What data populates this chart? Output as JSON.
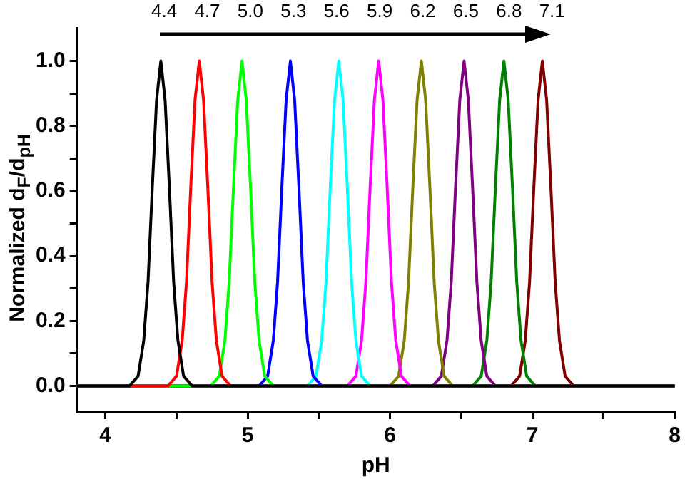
{
  "chart_data": {
    "type": "line",
    "xlabel": "pH",
    "ylabel": "Normalized d$_{F}$/d$_{pH}$",
    "xlim": [
      3.8,
      8.0
    ],
    "xticks": [
      4,
      {
        "value": 4.5,
        "label": null
      },
      5,
      {
        "value": 5.5,
        "label": null
      },
      6,
      {
        "value": 6.5,
        "label": null
      },
      7,
      {
        "value": 7.5,
        "label": null
      },
      8
    ],
    "ylim": [
      -0.08,
      1.1
    ],
    "yticks": [
      {
        "value": 0,
        "label": "0.0"
      },
      {
        "value": 0.1,
        "label": null
      },
      {
        "value": 0.2,
        "label": "0.2"
      },
      {
        "value": 0.3,
        "label": null
      },
      {
        "value": 0.4,
        "label": "0.4"
      },
      {
        "value": 0.5,
        "label": null
      },
      {
        "value": 0.6,
        "label": "0.6"
      },
      {
        "value": 0.7,
        "label": null
      },
      {
        "value": 0.8,
        "label": "0.8"
      },
      {
        "value": 0.9,
        "label": null
      },
      {
        "value": 1.0,
        "label": "1.0"
      }
    ],
    "annotations": [
      "4.4",
      "4.7",
      "5.0",
      "5.3",
      "5.6",
      "5.9",
      "6.2",
      "6.5",
      "6.8",
      "7.1"
    ],
    "legend": false,
    "marker": "none",
    "line_style": "solid",
    "series": [
      {
        "color": "#000000",
        "x": [
          3.8,
          4.17,
          4.23,
          4.27,
          4.3,
          4.33,
          4.36,
          4.39,
          4.42,
          4.45,
          4.48,
          4.51,
          4.55,
          4.61,
          8.0
        ],
        "values": [
          0,
          0,
          0.03,
          0.14,
          0.32,
          0.61,
          0.88,
          1,
          0.88,
          0.61,
          0.32,
          0.14,
          0.03,
          0,
          0
        ]
      },
      {
        "color": "#ff0000",
        "x": [
          3.8,
          4.44,
          4.5,
          4.54,
          4.57,
          4.6,
          4.63,
          4.66,
          4.69,
          4.72,
          4.75,
          4.78,
          4.82,
          4.88,
          8.0
        ],
        "values": [
          0,
          0,
          0.03,
          0.14,
          0.32,
          0.61,
          0.88,
          1,
          0.88,
          0.61,
          0.32,
          0.14,
          0.03,
          0,
          0
        ]
      },
      {
        "color": "#00ff00",
        "x": [
          3.8,
          4.74,
          4.8,
          4.84,
          4.87,
          4.9,
          4.93,
          4.96,
          4.99,
          5.02,
          5.05,
          5.08,
          5.12,
          5.18,
          8.0
        ],
        "values": [
          0,
          0,
          0.03,
          0.14,
          0.32,
          0.61,
          0.88,
          1,
          0.88,
          0.61,
          0.32,
          0.14,
          0.03,
          0,
          0
        ]
      },
      {
        "color": "#0000ff",
        "x": [
          3.8,
          5.08,
          5.14,
          5.18,
          5.21,
          5.24,
          5.27,
          5.3,
          5.33,
          5.36,
          5.39,
          5.42,
          5.46,
          5.52,
          8.0
        ],
        "values": [
          0,
          0,
          0.03,
          0.14,
          0.32,
          0.61,
          0.88,
          1,
          0.88,
          0.61,
          0.32,
          0.14,
          0.03,
          0,
          0
        ]
      },
      {
        "color": "#00ffff",
        "x": [
          3.8,
          5.42,
          5.48,
          5.52,
          5.55,
          5.58,
          5.61,
          5.64,
          5.67,
          5.7,
          5.73,
          5.76,
          5.8,
          5.86,
          8.0
        ],
        "values": [
          0,
          0,
          0.03,
          0.14,
          0.32,
          0.61,
          0.88,
          1,
          0.88,
          0.61,
          0.32,
          0.14,
          0.03,
          0,
          0
        ]
      },
      {
        "color": "#ff00ff",
        "x": [
          3.8,
          5.7,
          5.76,
          5.8,
          5.83,
          5.86,
          5.89,
          5.92,
          5.95,
          5.98,
          6.01,
          6.04,
          6.08,
          6.14,
          8.0
        ],
        "values": [
          0,
          0,
          0.03,
          0.14,
          0.32,
          0.61,
          0.88,
          1,
          0.88,
          0.61,
          0.32,
          0.14,
          0.03,
          0,
          0
        ]
      },
      {
        "color": "#808000",
        "x": [
          3.8,
          6.0,
          6.06,
          6.1,
          6.13,
          6.16,
          6.19,
          6.22,
          6.25,
          6.28,
          6.31,
          6.34,
          6.38,
          6.44,
          8.0
        ],
        "values": [
          0,
          0,
          0.03,
          0.14,
          0.32,
          0.61,
          0.88,
          1,
          0.88,
          0.61,
          0.32,
          0.14,
          0.03,
          0,
          0
        ]
      },
      {
        "color": "#800080",
        "x": [
          3.8,
          6.3,
          6.36,
          6.4,
          6.43,
          6.46,
          6.49,
          6.52,
          6.55,
          6.58,
          6.61,
          6.64,
          6.68,
          6.74,
          8.0
        ],
        "values": [
          0,
          0,
          0.03,
          0.14,
          0.32,
          0.61,
          0.88,
          1,
          0.88,
          0.61,
          0.32,
          0.14,
          0.03,
          0,
          0
        ]
      },
      {
        "color": "#008000",
        "x": [
          3.8,
          6.58,
          6.64,
          6.68,
          6.71,
          6.74,
          6.77,
          6.8,
          6.83,
          6.86,
          6.89,
          6.92,
          6.96,
          7.02,
          8.0
        ],
        "values": [
          0,
          0,
          0.03,
          0.14,
          0.32,
          0.61,
          0.88,
          1,
          0.88,
          0.61,
          0.32,
          0.14,
          0.03,
          0,
          0
        ]
      },
      {
        "color": "#800000",
        "x": [
          3.8,
          6.85,
          6.91,
          6.95,
          6.98,
          7.01,
          7.04,
          7.07,
          7.1,
          7.13,
          7.16,
          7.19,
          7.23,
          7.29,
          8.0
        ],
        "values": [
          0,
          0,
          0.03,
          0.14,
          0.32,
          0.61,
          0.88,
          1,
          0.88,
          0.61,
          0.32,
          0.14,
          0.03,
          0,
          0
        ]
      }
    ]
  }
}
